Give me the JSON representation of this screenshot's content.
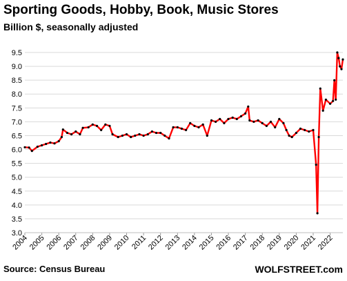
{
  "chart_data": {
    "type": "line",
    "title": "Sporting Goods, Hobby, Book, Music Stores",
    "subtitle": "Billion $, seasonally adjusted",
    "xlabel": "",
    "ylabel": "",
    "x_range": [
      2004.0,
      2022.75
    ],
    "ylim": [
      3.0,
      9.5
    ],
    "y_ticks": [
      "3.0",
      "3.5",
      "4.0",
      "4.5",
      "5.0",
      "5.5",
      "6.0",
      "6.5",
      "7.0",
      "7.5",
      "8.0",
      "8.5",
      "9.0",
      "9.5"
    ],
    "x_ticks": [
      "2004",
      "2005",
      "2006",
      "2007",
      "2008",
      "2009",
      "2010",
      "2011",
      "2012",
      "2013",
      "2014",
      "2015",
      "2016",
      "2017",
      "2018",
      "2019",
      "2020",
      "2021",
      "2022"
    ],
    "grid": "horizontal",
    "line_color": "#ff0000",
    "marker_color": "#000000",
    "series": [
      {
        "points": [
          [
            2004.0,
            6.08
          ],
          [
            2004.25,
            6.07
          ],
          [
            2004.42,
            5.95
          ],
          [
            2004.75,
            6.1
          ],
          [
            2005.0,
            6.15
          ],
          [
            2005.25,
            6.2
          ],
          [
            2005.5,
            6.25
          ],
          [
            2005.75,
            6.22
          ],
          [
            2006.0,
            6.3
          ],
          [
            2006.17,
            6.45
          ],
          [
            2006.25,
            6.72
          ],
          [
            2006.5,
            6.6
          ],
          [
            2006.75,
            6.55
          ],
          [
            2007.0,
            6.65
          ],
          [
            2007.25,
            6.55
          ],
          [
            2007.42,
            6.78
          ],
          [
            2007.75,
            6.8
          ],
          [
            2008.0,
            6.9
          ],
          [
            2008.25,
            6.85
          ],
          [
            2008.5,
            6.7
          ],
          [
            2008.75,
            6.9
          ],
          [
            2009.0,
            6.85
          ],
          [
            2009.17,
            6.55
          ],
          [
            2009.5,
            6.45
          ],
          [
            2009.75,
            6.5
          ],
          [
            2010.0,
            6.55
          ],
          [
            2010.25,
            6.45
          ],
          [
            2010.5,
            6.5
          ],
          [
            2010.75,
            6.55
          ],
          [
            2011.0,
            6.5
          ],
          [
            2011.25,
            6.55
          ],
          [
            2011.5,
            6.65
          ],
          [
            2011.75,
            6.6
          ],
          [
            2012.0,
            6.6
          ],
          [
            2012.25,
            6.5
          ],
          [
            2012.5,
            6.4
          ],
          [
            2012.75,
            6.8
          ],
          [
            2013.0,
            6.8
          ],
          [
            2013.25,
            6.75
          ],
          [
            2013.5,
            6.7
          ],
          [
            2013.75,
            6.95
          ],
          [
            2014.0,
            6.85
          ],
          [
            2014.25,
            6.8
          ],
          [
            2014.5,
            6.9
          ],
          [
            2014.75,
            6.5
          ],
          [
            2015.0,
            7.05
          ],
          [
            2015.25,
            7.0
          ],
          [
            2015.5,
            7.1
          ],
          [
            2015.75,
            6.95
          ],
          [
            2016.0,
            7.1
          ],
          [
            2016.25,
            7.15
          ],
          [
            2016.5,
            7.1
          ],
          [
            2016.75,
            7.2
          ],
          [
            2017.0,
            7.3
          ],
          [
            2017.17,
            7.55
          ],
          [
            2017.25,
            7.05
          ],
          [
            2017.5,
            7.0
          ],
          [
            2017.75,
            7.05
          ],
          [
            2018.0,
            6.95
          ],
          [
            2018.25,
            6.85
          ],
          [
            2018.5,
            7.0
          ],
          [
            2018.75,
            6.8
          ],
          [
            2019.0,
            7.1
          ],
          [
            2019.25,
            6.95
          ],
          [
            2019.42,
            6.7
          ],
          [
            2019.58,
            6.5
          ],
          [
            2019.75,
            6.45
          ],
          [
            2020.0,
            6.6
          ],
          [
            2020.25,
            6.75
          ],
          [
            2020.5,
            6.7
          ],
          [
            2020.75,
            6.65
          ],
          [
            2021.0,
            6.7
          ],
          [
            2021.17,
            5.45
          ],
          [
            2021.25,
            3.7
          ],
          [
            2021.33,
            6.45
          ],
          [
            2021.42,
            8.2
          ],
          [
            2021.58,
            7.4
          ],
          [
            2021.75,
            7.8
          ],
          [
            2022.0,
            7.65
          ],
          [
            2022.17,
            7.75
          ],
          [
            2022.25,
            8.5
          ],
          [
            2022.33,
            7.8
          ],
          [
            2022.42,
            9.5
          ],
          [
            2022.5,
            9.3
          ],
          [
            2022.58,
            9.0
          ],
          [
            2022.67,
            8.9
          ],
          [
            2022.75,
            9.25
          ]
        ]
      }
    ],
    "source": "Source: Census Bureau",
    "brand": "WOLFSTREET.com"
  }
}
